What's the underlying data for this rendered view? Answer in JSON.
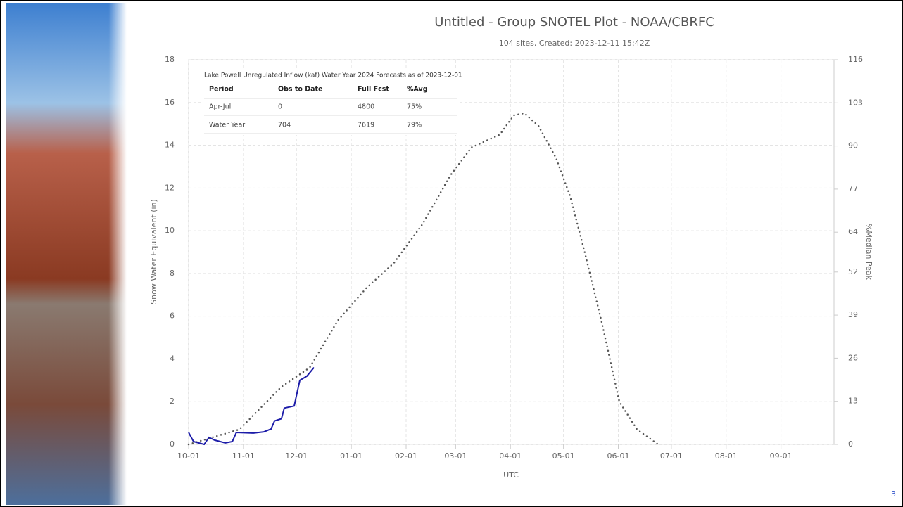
{
  "chart_data": {
    "type": "line",
    "title": "Untitled - Group SNOTEL Plot - NOAA/CBRFC",
    "subtitle": "104 sites, Created: 2023-12-11 15:42Z",
    "x_label": "UTC",
    "y_label": "Snow Water Equivalent (in)",
    "y2_label": "%Median Peak",
    "xlim": [
      0,
      365
    ],
    "xticks": [
      {
        "value": 0,
        "label": "10-01"
      },
      {
        "value": 31,
        "label": "11-01"
      },
      {
        "value": 61,
        "label": "12-01"
      },
      {
        "value": 92,
        "label": "01-01"
      },
      {
        "value": 123,
        "label": "02-01"
      },
      {
        "value": 151,
        "label": "03-01"
      },
      {
        "value": 182,
        "label": "04-01"
      },
      {
        "value": 212,
        "label": "05-01"
      },
      {
        "value": 243,
        "label": "06-01"
      },
      {
        "value": 273,
        "label": "07-01"
      },
      {
        "value": 304,
        "label": "08-01"
      },
      {
        "value": 335,
        "label": "09-01"
      }
    ],
    "ylim": [
      0,
      18
    ],
    "yticks": [
      0,
      2,
      4,
      6,
      8,
      10,
      12,
      14,
      16,
      18
    ],
    "y2lim": [
      0,
      116
    ],
    "y2ticks": [
      0,
      13,
      26,
      39,
      52,
      64,
      77,
      90,
      103,
      116
    ],
    "grid": true,
    "series": [
      {
        "color": "#555555",
        "dash": "dotted",
        "x": [
          0,
          28.7,
          40.6,
          52.5,
          68.5,
          84.4,
          100.3,
          116.2,
          132.2,
          148.1,
          160,
          176,
          183.9,
          189.9,
          197.9,
          207.8,
          215.8,
          223.7,
          233.7,
          243.6,
          253.6,
          265.5
        ],
        "values": [
          0,
          0.7,
          1.7,
          2.7,
          3.6,
          5.8,
          7.3,
          8.5,
          10.3,
          12.6,
          13.9,
          14.5,
          15.4,
          15.5,
          14.9,
          13.4,
          11.6,
          9.1,
          5.7,
          2.0,
          0.7,
          0
        ]
      },
      {
        "color": "#1c1ca8",
        "dash": "solid",
        "x": [
          0,
          2.8,
          8.8,
          11.5,
          14.7,
          20.7,
          24.7,
          27,
          36.6,
          42.6,
          46.6,
          48.6,
          52.5,
          54.1,
          59.7,
          62.9,
          66.9,
          70.9
        ],
        "values": [
          0.56,
          0.13,
          0,
          0.33,
          0.2,
          0.07,
          0.13,
          0.56,
          0.53,
          0.59,
          0.72,
          1.1,
          1.2,
          1.7,
          1.8,
          3.0,
          3.2,
          3.6
        ]
      }
    ]
  },
  "table": {
    "title": "Lake Powell Unregulated Inflow (kaf) Water Year 2024 Forecasts as of 2023-12-01",
    "header": [
      "Period",
      "Obs to Date",
      "Full Fcst",
      "%Avg"
    ],
    "rows": [
      [
        "Apr-Jul",
        "0",
        "4800",
        "75%"
      ],
      [
        "Water Year",
        "704",
        "7619",
        "79%"
      ]
    ]
  },
  "page_number": "3"
}
